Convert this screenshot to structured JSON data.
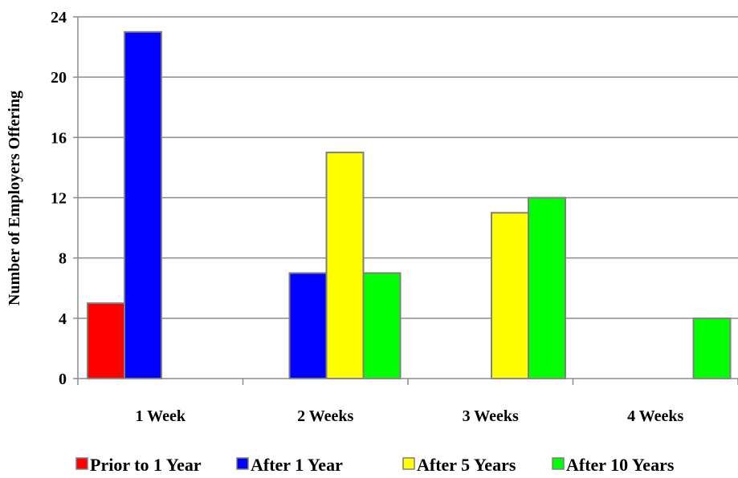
{
  "chart_data": {
    "type": "bar",
    "title": "",
    "xlabel": "",
    "ylabel": "Number of Employers Offering",
    "categories": [
      "1 Week",
      "2 Weeks",
      "3 Weeks",
      "4 Weeks"
    ],
    "series": [
      {
        "name": "Prior to 1 Year",
        "color": "#ff0000",
        "values": [
          5,
          0,
          0,
          0
        ]
      },
      {
        "name": "After 1 Year",
        "color": "#0000ff",
        "values": [
          23,
          7,
          0,
          0
        ]
      },
      {
        "name": "After 5 Years",
        "color": "#ffff00",
        "values": [
          0,
          15,
          11,
          0
        ]
      },
      {
        "name": "After 10 Years",
        "color": "#00ff00",
        "values": [
          0,
          7,
          12,
          4
        ]
      }
    ],
    "ylim": [
      0,
      24
    ],
    "yticks": [
      0,
      4,
      8,
      12,
      16,
      20,
      24
    ],
    "grid": true,
    "legend": "bottom"
  }
}
